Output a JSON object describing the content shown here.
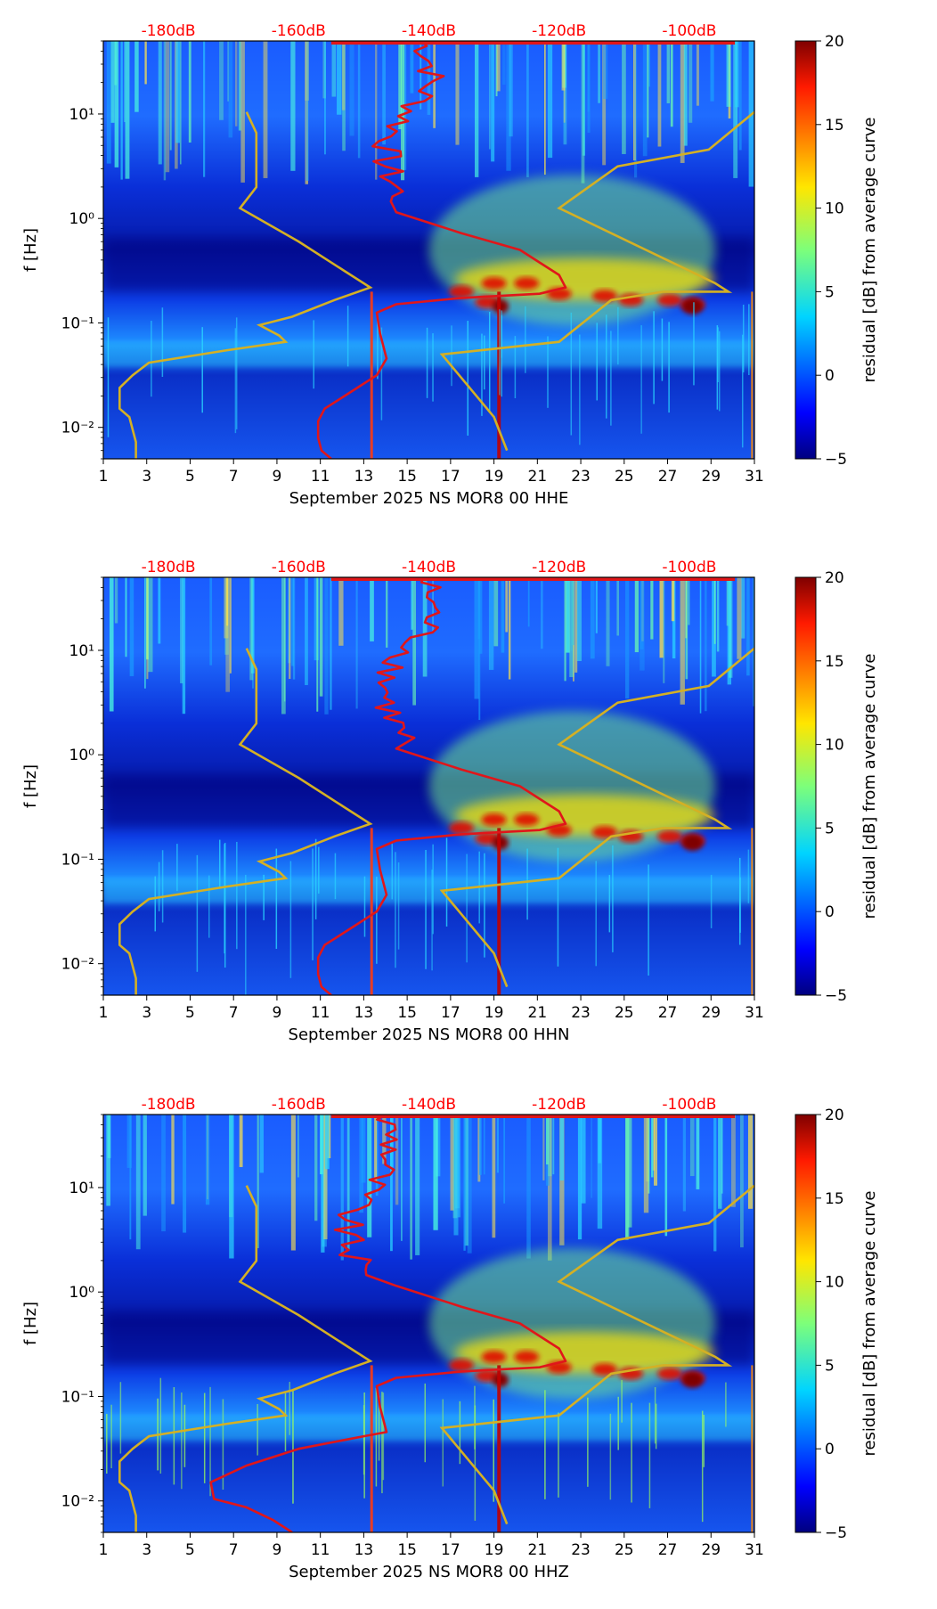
{
  "colors": {
    "red_curve": "#e0161a",
    "gold_curve": "#d4b024",
    "db_labels": "#ff0000"
  },
  "colorbar": {
    "label": "residual [dB] from average curve",
    "ticks": [
      "20",
      "15",
      "10",
      "5",
      "0",
      "−5"
    ]
  },
  "chart_data": [
    {
      "type": "heatmap",
      "title": "",
      "xlabel": "September 2025 NS MOR8 00 HHE",
      "ylabel": "f [Hz]",
      "x_ticks": [
        "1",
        "3",
        "5",
        "7",
        "9",
        "11",
        "13",
        "15",
        "17",
        "19",
        "21",
        "23",
        "25",
        "27",
        "29",
        "31"
      ],
      "y_ticks": [
        "10¹",
        "10⁰",
        "10⁻¹",
        "10⁻²"
      ],
      "top_ticks": [
        "-180dB",
        "-160dB",
        "-140dB",
        "-120dB",
        "-100dB"
      ],
      "xlim": [
        1,
        31
      ],
      "ylim": [
        0.005,
        50
      ],
      "clim": [
        -5,
        20
      ],
      "colorbar_label": "residual [dB] from average curve"
    },
    {
      "type": "heatmap",
      "title": "",
      "xlabel": "September 2025 NS MOR8 00 HHN",
      "ylabel": "f [Hz]",
      "x_ticks": [
        "1",
        "3",
        "5",
        "7",
        "9",
        "11",
        "13",
        "15",
        "17",
        "19",
        "21",
        "23",
        "25",
        "27",
        "29",
        "31"
      ],
      "y_ticks": [
        "10¹",
        "10⁰",
        "10⁻¹",
        "10⁻²"
      ],
      "top_ticks": [
        "-180dB",
        "-160dB",
        "-140dB",
        "-120dB",
        "-100dB"
      ],
      "xlim": [
        1,
        31
      ],
      "ylim": [
        0.005,
        50
      ],
      "clim": [
        -5,
        20
      ],
      "colorbar_label": "residual [dB] from average curve"
    },
    {
      "type": "heatmap",
      "title": "",
      "xlabel": "September 2025 NS MOR8 00 HHZ",
      "ylabel": "f [Hz]",
      "x_ticks": [
        "1",
        "3",
        "5",
        "7",
        "9",
        "11",
        "13",
        "15",
        "17",
        "19",
        "21",
        "23",
        "25",
        "27",
        "29",
        "31"
      ],
      "y_ticks": [
        "10¹",
        "10⁰",
        "10⁻¹",
        "10⁻²"
      ],
      "top_ticks": [
        "-180dB",
        "-160dB",
        "-140dB",
        "-120dB",
        "-100dB"
      ],
      "xlim": [
        1,
        31
      ],
      "ylim": [
        0.005,
        50
      ],
      "clim": [
        -5,
        20
      ],
      "colorbar_label": "residual [dB] from average curve"
    }
  ]
}
